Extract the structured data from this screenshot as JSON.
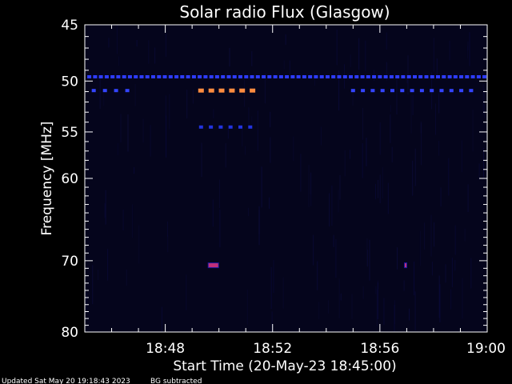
{
  "chart_data": {
    "type": "heatmap",
    "title": "Solar radio Flux (Glasgow)",
    "xlabel": "Start Time (20-May-23 18:45:00)",
    "ylabel": "Frequency [MHz]",
    "x_range": [
      "18:45",
      "19:00"
    ],
    "ylim": [
      45,
      80
    ],
    "y_scale": "log",
    "x_ticks": [
      "18:48",
      "18:52",
      "18:56",
      "19:00"
    ],
    "y_ticks": [
      45,
      50,
      55,
      60,
      70,
      80
    ],
    "footer_left": "Updated Sat May 20 19:18:43 2023",
    "footer_right": "BG subtracted",
    "features": [
      {
        "kind": "dotted-band",
        "freq": 49.6,
        "from": "18:45:10",
        "to": "19:00:00",
        "step_s": 13,
        "color": "#2d3cff",
        "level": "low"
      },
      {
        "kind": "dotted-band",
        "freq": 50.9,
        "from": "18:45:20",
        "to": "18:46:50",
        "step_s": 25,
        "color": "#3344ff",
        "level": "low"
      },
      {
        "kind": "dotted-band",
        "freq": 50.9,
        "from": "18:49:20",
        "to": "18:51:30",
        "step_s": 23,
        "color": "#ff8c40",
        "level": "high"
      },
      {
        "kind": "dotted-band",
        "freq": 50.9,
        "from": "18:55:00",
        "to": "18:59:40",
        "step_s": 22,
        "color": "#3344ff",
        "level": "low"
      },
      {
        "kind": "dotted-band",
        "freq": 54.5,
        "from": "18:49:20",
        "to": "18:51:30",
        "step_s": 22,
        "color": "#2233dd",
        "level": "low"
      },
      {
        "kind": "burst",
        "freq": 70.6,
        "from": "18:49:35",
        "to": "18:50:00",
        "color": "#c0307a",
        "level": "medium"
      },
      {
        "kind": "burst",
        "freq": 70.6,
        "from": "18:56:54",
        "to": "18:57:00",
        "color": "#c0307a",
        "level": "medium"
      }
    ],
    "colors": {
      "background": "#000000",
      "plot_background": "#05051c",
      "noise": "#0b0b3a",
      "axis": "#ffffff"
    }
  }
}
